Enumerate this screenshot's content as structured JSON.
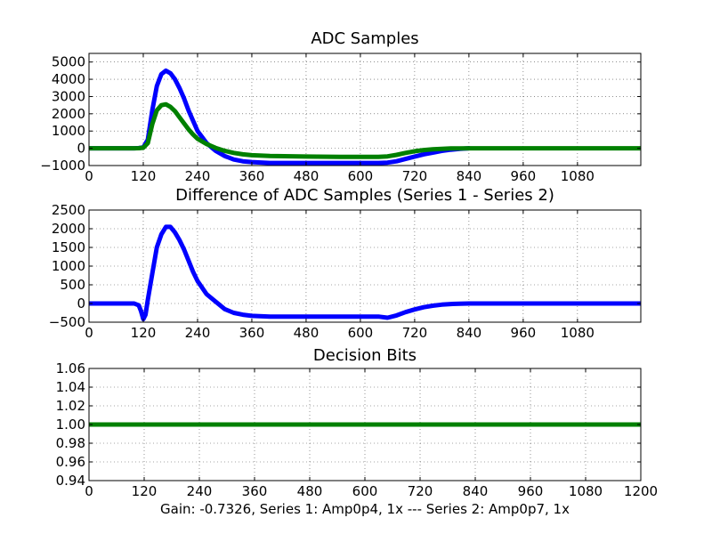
{
  "chart_data": [
    {
      "type": "line",
      "title": "ADC Samples",
      "xlim": [
        0,
        1220
      ],
      "ylim": [
        -1000,
        5500
      ],
      "xticks": [
        0,
        120,
        240,
        360,
        480,
        600,
        720,
        840,
        960,
        1080
      ],
      "yticks": [
        -1000,
        0,
        1000,
        2000,
        3000,
        4000,
        5000
      ],
      "xtick_labels": [
        "0",
        "120",
        "240",
        "360",
        "480",
        "600",
        "720",
        "840",
        "960",
        "1080"
      ],
      "ytick_labels": [
        "−1000",
        "0",
        "1000",
        "2000",
        "3000",
        "4000",
        "5000"
      ],
      "grid": true,
      "series": [
        {
          "color": "#0000ff",
          "x": [
            0,
            100,
            110,
            120,
            130,
            140,
            150,
            160,
            170,
            180,
            190,
            200,
            210,
            220,
            230,
            240,
            260,
            280,
            300,
            320,
            340,
            360,
            400,
            480,
            560,
            640,
            660,
            680,
            700,
            720,
            740,
            760,
            780,
            800,
            820,
            840
          ],
          "y": [
            0,
            0,
            10,
            50,
            500,
            2200,
            3600,
            4300,
            4500,
            4350,
            4000,
            3500,
            2900,
            2200,
            1600,
            1000,
            300,
            -150,
            -450,
            -650,
            -750,
            -800,
            -850,
            -850,
            -850,
            -850,
            -830,
            -750,
            -620,
            -480,
            -350,
            -250,
            -150,
            -80,
            -30,
            0
          ]
        },
        {
          "color": "#008000",
          "x": [
            0,
            100,
            110,
            120,
            130,
            140,
            150,
            160,
            170,
            180,
            190,
            200,
            210,
            220,
            230,
            240,
            260,
            280,
            300,
            320,
            340,
            360,
            400,
            480,
            560,
            640,
            660,
            680,
            700,
            720,
            740,
            760,
            780,
            800,
            820,
            840,
            960,
            1080,
            1220
          ],
          "y": [
            0,
            0,
            5,
            30,
            300,
            1400,
            2200,
            2500,
            2550,
            2400,
            2150,
            1800,
            1450,
            1100,
            800,
            550,
            250,
            20,
            -150,
            -270,
            -350,
            -400,
            -450,
            -480,
            -500,
            -500,
            -470,
            -380,
            -270,
            -170,
            -100,
            -60,
            -30,
            -10,
            -5,
            0,
            0,
            0,
            0
          ]
        }
      ]
    },
    {
      "type": "line",
      "title": "Difference of ADC Samples (Series 1 - Series 2)",
      "xlim": [
        0,
        1220
      ],
      "ylim": [
        -500,
        2500
      ],
      "xticks": [
        0,
        120,
        240,
        360,
        480,
        600,
        720,
        840,
        960,
        1080
      ],
      "yticks": [
        -500,
        0,
        500,
        1000,
        1500,
        2000,
        2500
      ],
      "xtick_labels": [
        "0",
        "120",
        "240",
        "360",
        "480",
        "600",
        "720",
        "840",
        "960",
        "1080"
      ],
      "ytick_labels": [
        "−500",
        "0",
        "500",
        "1000",
        "1500",
        "2000",
        "2500"
      ],
      "grid": true,
      "series": [
        {
          "color": "#0000ff",
          "x": [
            0,
            100,
            110,
            115,
            120,
            125,
            130,
            140,
            150,
            160,
            170,
            180,
            190,
            200,
            210,
            220,
            230,
            240,
            260,
            280,
            300,
            320,
            340,
            360,
            400,
            480,
            560,
            640,
            660,
            680,
            700,
            720,
            740,
            760,
            780,
            800,
            820,
            840,
            960,
            1080,
            1220
          ],
          "y": [
            0,
            0,
            -50,
            -200,
            -420,
            -300,
            100,
            800,
            1500,
            1850,
            2050,
            2050,
            1900,
            1700,
            1450,
            1150,
            850,
            600,
            250,
            50,
            -150,
            -250,
            -300,
            -330,
            -350,
            -350,
            -350,
            -350,
            -380,
            -320,
            -230,
            -160,
            -100,
            -60,
            -30,
            -15,
            -5,
            0,
            0,
            0,
            0
          ]
        }
      ]
    },
    {
      "type": "line",
      "title": "Decision Bits",
      "xlim": [
        0,
        1200
      ],
      "ylim": [
        0.94,
        1.06
      ],
      "xticks": [
        0,
        120,
        240,
        360,
        480,
        600,
        720,
        840,
        960,
        1080,
        1200
      ],
      "yticks": [
        0.94,
        0.96,
        0.98,
        1.0,
        1.02,
        1.04,
        1.06
      ],
      "xtick_labels": [
        "0",
        "120",
        "240",
        "360",
        "480",
        "600",
        "720",
        "840",
        "960",
        "1080",
        "1200"
      ],
      "ytick_labels": [
        "0.94",
        "0.96",
        "0.98",
        "1.00",
        "1.02",
        "1.04",
        "1.06"
      ],
      "grid": true,
      "series": [
        {
          "color": "#008000",
          "x": [
            0,
            1200
          ],
          "y": [
            1.0,
            1.0
          ]
        }
      ]
    }
  ],
  "caption": "Gain: -0.7326, Series 1: Amp0p4, 1x --- Series 2: Amp0p7, 1x"
}
